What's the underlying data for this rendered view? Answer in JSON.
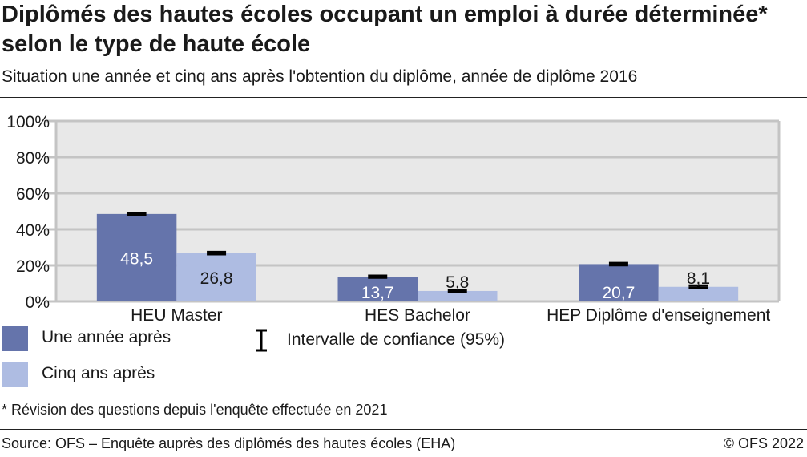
{
  "chart_data": {
    "type": "bar",
    "title": "Diplômés des hautes écoles occupant un emploi à durée déterminée* selon le type de haute école",
    "subtitle": "Situation une année et cinq ans après l'obtention du diplôme, année de diplôme 2016",
    "categories": [
      "HEU Master",
      "HES Bachelor",
      "HEP Diplôme d'enseignement"
    ],
    "series": [
      {
        "name": "Une année après",
        "color": "#6574ab",
        "label_color": "#ffffff",
        "values": [
          48.5,
          13.7,
          20.7
        ],
        "labels": [
          "48,5",
          "13,7",
          "20,7"
        ],
        "ci_low": [
          48.0,
          13.2,
          20.1
        ],
        "ci_high": [
          49.0,
          14.2,
          21.3
        ]
      },
      {
        "name": "Cinq ans après",
        "color": "#aebce2",
        "label_color": "#1a1a1a",
        "values": [
          26.8,
          5.8,
          8.1
        ],
        "labels": [
          "26,8",
          "5,8",
          "8,1"
        ],
        "ci_low": [
          26.2,
          5.2,
          7.4
        ],
        "ci_high": [
          27.4,
          6.4,
          8.8
        ]
      }
    ],
    "ci_legend": "Intervalle de confiance (95%)",
    "ylim": [
      0,
      100
    ],
    "yticks": [
      0,
      20,
      40,
      60,
      80,
      100
    ],
    "ytick_labels": [
      "0%",
      "20%",
      "40%",
      "60%",
      "80%",
      "100%"
    ],
    "grid": true,
    "legend_position": "bottom-left",
    "background": "#e8e8e8"
  },
  "footnote": "* Révision des questions depuis l'enquête effectuée en 2021",
  "source": "Source: OFS – Enquête auprès des diplômés des hautes écoles (EHA)",
  "copyright": "© OFS 2022"
}
